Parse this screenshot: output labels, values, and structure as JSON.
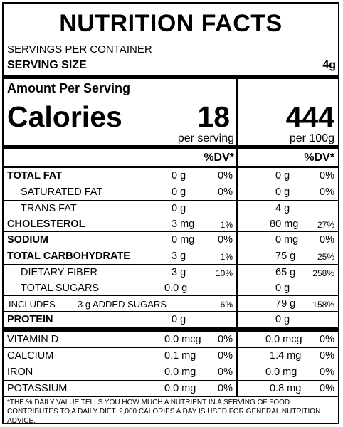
{
  "title": "NUTRITION FACTS",
  "servings_per_container_label": "SERVINGS PER CONTAINER",
  "serving_size_label": "SERVING SIZE",
  "serving_size_value": "4g",
  "amount_per_serving_label": "Amount Per Serving",
  "calories_label": "Calories",
  "calories_per_serving": "18",
  "calories_per_100g": "444",
  "per_serving_label": "per serving",
  "per_100g_label": "per 100g",
  "dv_header": "%DV*",
  "rows": [
    {
      "name": "TOTAL FAT",
      "s_amt": "0 g",
      "s_dv": "0%",
      "h_amt": "0 g",
      "h_dv": "0%"
    },
    {
      "name": "SATURATED FAT",
      "s_amt": "0 g",
      "s_dv": "0%",
      "h_amt": "0 g",
      "h_dv": "0%"
    },
    {
      "name": "TRANS FAT",
      "s_amt": "0 g",
      "s_dv": "",
      "h_amt": "4 g",
      "h_dv": ""
    },
    {
      "name": "CHOLESTEROL",
      "s_amt": "3 mg",
      "s_dv": "1%",
      "h_amt": "80 mg",
      "h_dv": "27%"
    },
    {
      "name": "SODIUM",
      "s_amt": "0 mg",
      "s_dv": "0%",
      "h_amt": "0 mg",
      "h_dv": "0%"
    },
    {
      "name": "TOTAL CARBOHYDRATE",
      "s_amt": "3 g",
      "s_dv": "1%",
      "h_amt": "75 g",
      "h_dv": "25%"
    },
    {
      "name": "DIETARY FIBER",
      "s_amt": "3 g",
      "s_dv": "10%",
      "h_amt": "65 g",
      "h_dv": "258%"
    },
    {
      "name": "TOTAL SUGARS",
      "s_amt": "0.0 g",
      "s_dv": "",
      "h_amt": "0 g",
      "h_dv": ""
    },
    {
      "name": "INCLUDES",
      "s_amt": "3 g ADDED SUGARS",
      "s_dv": "6%",
      "h_amt": "79 g",
      "h_dv": "158%"
    },
    {
      "name": "PROTEIN",
      "s_amt": "0 g",
      "s_dv": "",
      "h_amt": "0 g",
      "h_dv": ""
    }
  ],
  "micros": [
    {
      "name": "VITAMIN D",
      "s_amt": "0.0 mcg",
      "s_dv": "0%",
      "h_amt": "0.0 mcg",
      "h_dv": "0%"
    },
    {
      "name": "CALCIUM",
      "s_amt": "0.1 mg",
      "s_dv": "0%",
      "h_amt": "1.4 mg",
      "h_dv": "0%"
    },
    {
      "name": "IRON",
      "s_amt": "0.0 mg",
      "s_dv": "0%",
      "h_amt": "0.0 mg",
      "h_dv": "0%"
    },
    {
      "name": "POTASSIUM",
      "s_amt": "0.0 mg",
      "s_dv": "0%",
      "h_amt": "0.8 mg",
      "h_dv": "0%"
    }
  ],
  "footnote": "*THE % DAILY VALUE TELLS YOU HOW MUCH A NUTRIENT IN A SERVING OF FOOD CONTRIBUTES TO A DAILY DIET.  2,000 CALORIES A DAY IS USED FOR GENERAL NUTRITION ADVICE."
}
